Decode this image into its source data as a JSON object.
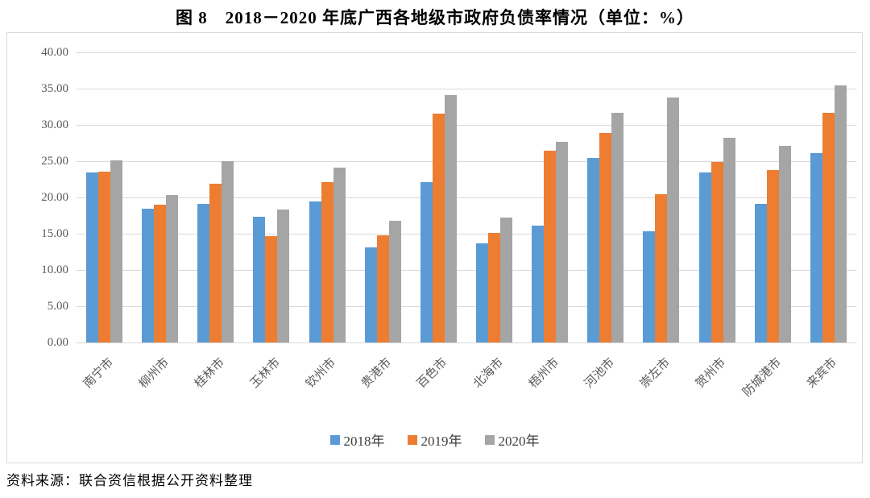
{
  "title": "图 8　2018－2020 年底广西各地级市政府负债率情况（单位：%）",
  "source_note": "资料来源：联合资信根据公开资料整理",
  "colors": {
    "series_2018": "#5B9BD5",
    "series_2019": "#ED7D31",
    "series_2020": "#A5A5A5",
    "gridline": "#D9D9D9",
    "frame_border": "#D9D9D9",
    "axis_text": "#595959"
  },
  "chart_data": {
    "type": "bar",
    "title": "图 8　2018－2020 年底广西各地级市政府负债率情况（单位：%）",
    "categories": [
      "南宁市",
      "柳州市",
      "桂林市",
      "玉林市",
      "钦州市",
      "贵港市",
      "百色市",
      "北海市",
      "梧州市",
      "河池市",
      "崇左市",
      "贺州市",
      "防城港市",
      "来宾市"
    ],
    "series": [
      {
        "name": "2018年",
        "color": "#5B9BD5",
        "values": [
          23.4,
          18.4,
          19.1,
          17.3,
          19.5,
          13.1,
          22.1,
          13.7,
          16.1,
          25.4,
          15.3,
          23.4,
          19.1,
          26.1
        ]
      },
      {
        "name": "2019年",
        "color": "#ED7D31",
        "values": [
          23.6,
          19.0,
          21.9,
          14.7,
          22.1,
          14.8,
          31.6,
          15.1,
          26.4,
          28.9,
          20.4,
          24.9,
          23.8,
          31.7
        ]
      },
      {
        "name": "2020年",
        "color": "#A5A5A5",
        "values": [
          25.1,
          20.3,
          25.0,
          18.3,
          24.1,
          16.8,
          34.1,
          17.2,
          27.7,
          31.7,
          33.8,
          28.2,
          27.1,
          35.4
        ]
      }
    ],
    "xlabel": "",
    "ylabel": "",
    "ylim": [
      0,
      40
    ],
    "ytick_step": 5,
    "yticks": [
      "0.00",
      "5.00",
      "10.00",
      "15.00",
      "20.00",
      "25.00",
      "30.00",
      "35.00",
      "40.00"
    ],
    "grid": true,
    "legend_position": "bottom"
  }
}
